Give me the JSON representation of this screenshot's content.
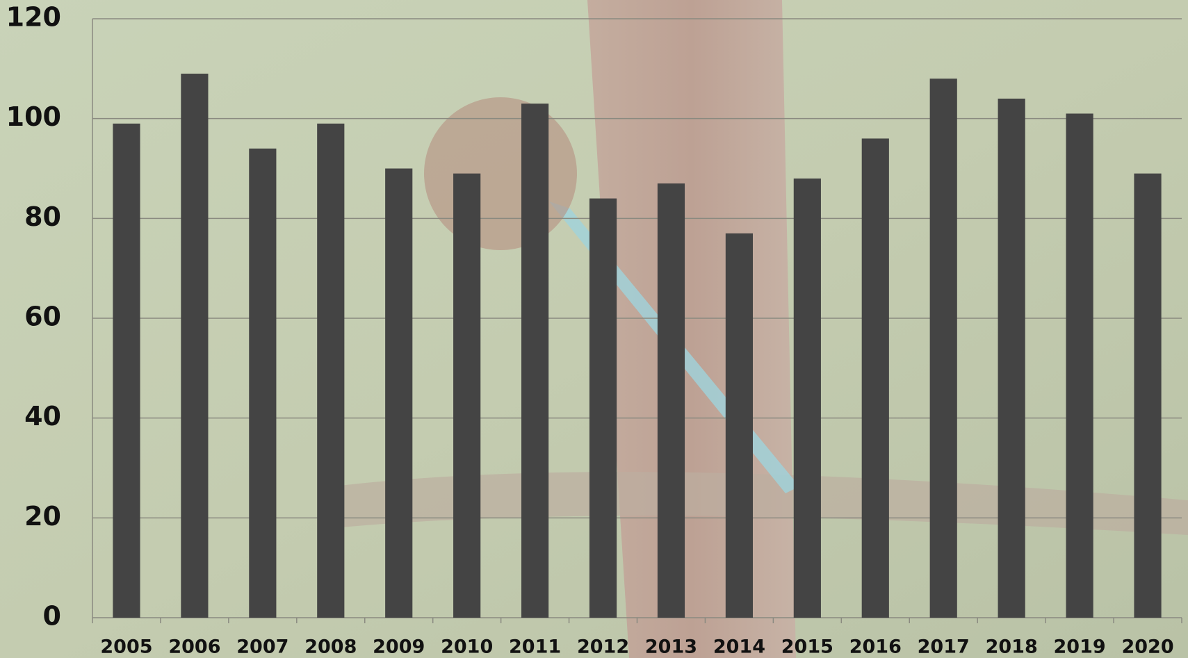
{
  "chart_data": {
    "type": "bar",
    "categories": [
      "2005",
      "2006",
      "2007",
      "2008",
      "2009",
      "2010",
      "2011",
      "2012",
      "2013",
      "2014",
      "2015",
      "2016",
      "2017",
      "2018",
      "2019",
      "2020"
    ],
    "values": [
      99,
      109,
      94,
      99,
      90,
      89,
      103,
      84,
      87,
      77,
      88,
      96,
      108,
      104,
      101,
      89
    ],
    "color": "#444444",
    "ylim": [
      0,
      120
    ],
    "yticks": [
      0,
      20,
      40,
      60,
      80,
      100,
      120
    ],
    "grid": true
  }
}
